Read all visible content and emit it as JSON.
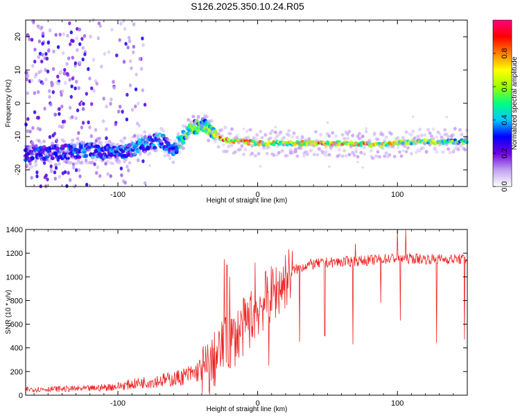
{
  "title": "S126.2025.350.10.24.R05",
  "chart_data": [
    {
      "type": "heatmap",
      "name": "spectrogram",
      "xlabel": "Height of straight line (km)",
      "ylabel": "Frequency (Hz)",
      "xlim": [
        -166,
        150
      ],
      "ylim": [
        -25,
        25
      ],
      "xticks": [
        -100,
        0,
        100
      ],
      "yticks": [
        -20,
        -10,
        0,
        10,
        20
      ],
      "colorbar": {
        "label": "Normalized spectral amplitude",
        "range": [
          0,
          1
        ],
        "ticks": [
          "0.0",
          "0.2",
          "0.4",
          "0.6",
          "0.8"
        ],
        "tick_values": [
          0.0,
          0.2,
          0.4,
          0.6,
          0.8
        ],
        "colors": [
          "#ffffff",
          "#c0a0f0",
          "#7000e0",
          "#0000ff",
          "#00c8ff",
          "#00ff80",
          "#a0ff00",
          "#ffff00",
          "#ff8000",
          "#ff0000",
          "#ff0080"
        ]
      },
      "ridge": {
        "x": [
          -150,
          -120,
          -100,
          -85,
          -70,
          -60,
          -50,
          -40,
          -32,
          -25,
          -10,
          0,
          20,
          50,
          70,
          80,
          90,
          100,
          120,
          150
        ],
        "freq": [
          -15,
          -14,
          -15,
          -13,
          -11,
          -14,
          -8,
          -6.5,
          -8,
          -11,
          -11.5,
          -12,
          -12,
          -12,
          -12,
          -12.5,
          -12.5,
          -12,
          -11.5,
          -11.5
        ],
        "amp": [
          0.28,
          0.32,
          0.3,
          0.35,
          0.35,
          0.3,
          0.5,
          0.45,
          0.55,
          0.75,
          0.7,
          0.68,
          0.6,
          0.7,
          0.65,
          0.7,
          0.65,
          0.6,
          0.55,
          0.5
        ]
      }
    },
    {
      "type": "line",
      "name": "snr",
      "xlabel": "Height of straight line (km)",
      "ylabel": "SNR (10 * v/v)",
      "xlim": [
        -166,
        150
      ],
      "ylim": [
        0,
        1400
      ],
      "xticks": [
        -100,
        0,
        100
      ],
      "yticks": [
        0,
        200,
        400,
        600,
        800,
        1000,
        1200,
        1400
      ],
      "color": "#ee2222",
      "baseline": {
        "x": [
          -166,
          -120,
          -100,
          -80,
          -60,
          -45,
          -35,
          -25,
          -15,
          -5,
          5,
          15,
          25,
          35,
          50,
          80,
          100,
          120,
          150
        ],
        "y": [
          40,
          45,
          60,
          90,
          110,
          150,
          220,
          400,
          500,
          650,
          800,
          900,
          1050,
          1100,
          1120,
          1140,
          1160,
          1150,
          1150
        ]
      },
      "spikes": [
        {
          "x": -24,
          "y": 1150
        },
        {
          "x": -22,
          "y": 1100
        },
        {
          "x": -20,
          "y": 1000
        },
        {
          "x": -2,
          "y": 1120
        },
        {
          "x": 8,
          "y": 250
        },
        {
          "x": 30,
          "y": 450
        },
        {
          "x": 48,
          "y": 500
        },
        {
          "x": 68,
          "y": 430
        },
        {
          "x": 70,
          "y": 1280
        },
        {
          "x": 88,
          "y": 780
        },
        {
          "x": 100,
          "y": 1400
        },
        {
          "x": 102,
          "y": 630
        },
        {
          "x": 106,
          "y": 1400
        },
        {
          "x": 128,
          "y": 440
        },
        {
          "x": 148,
          "y": 470
        }
      ]
    }
  ]
}
